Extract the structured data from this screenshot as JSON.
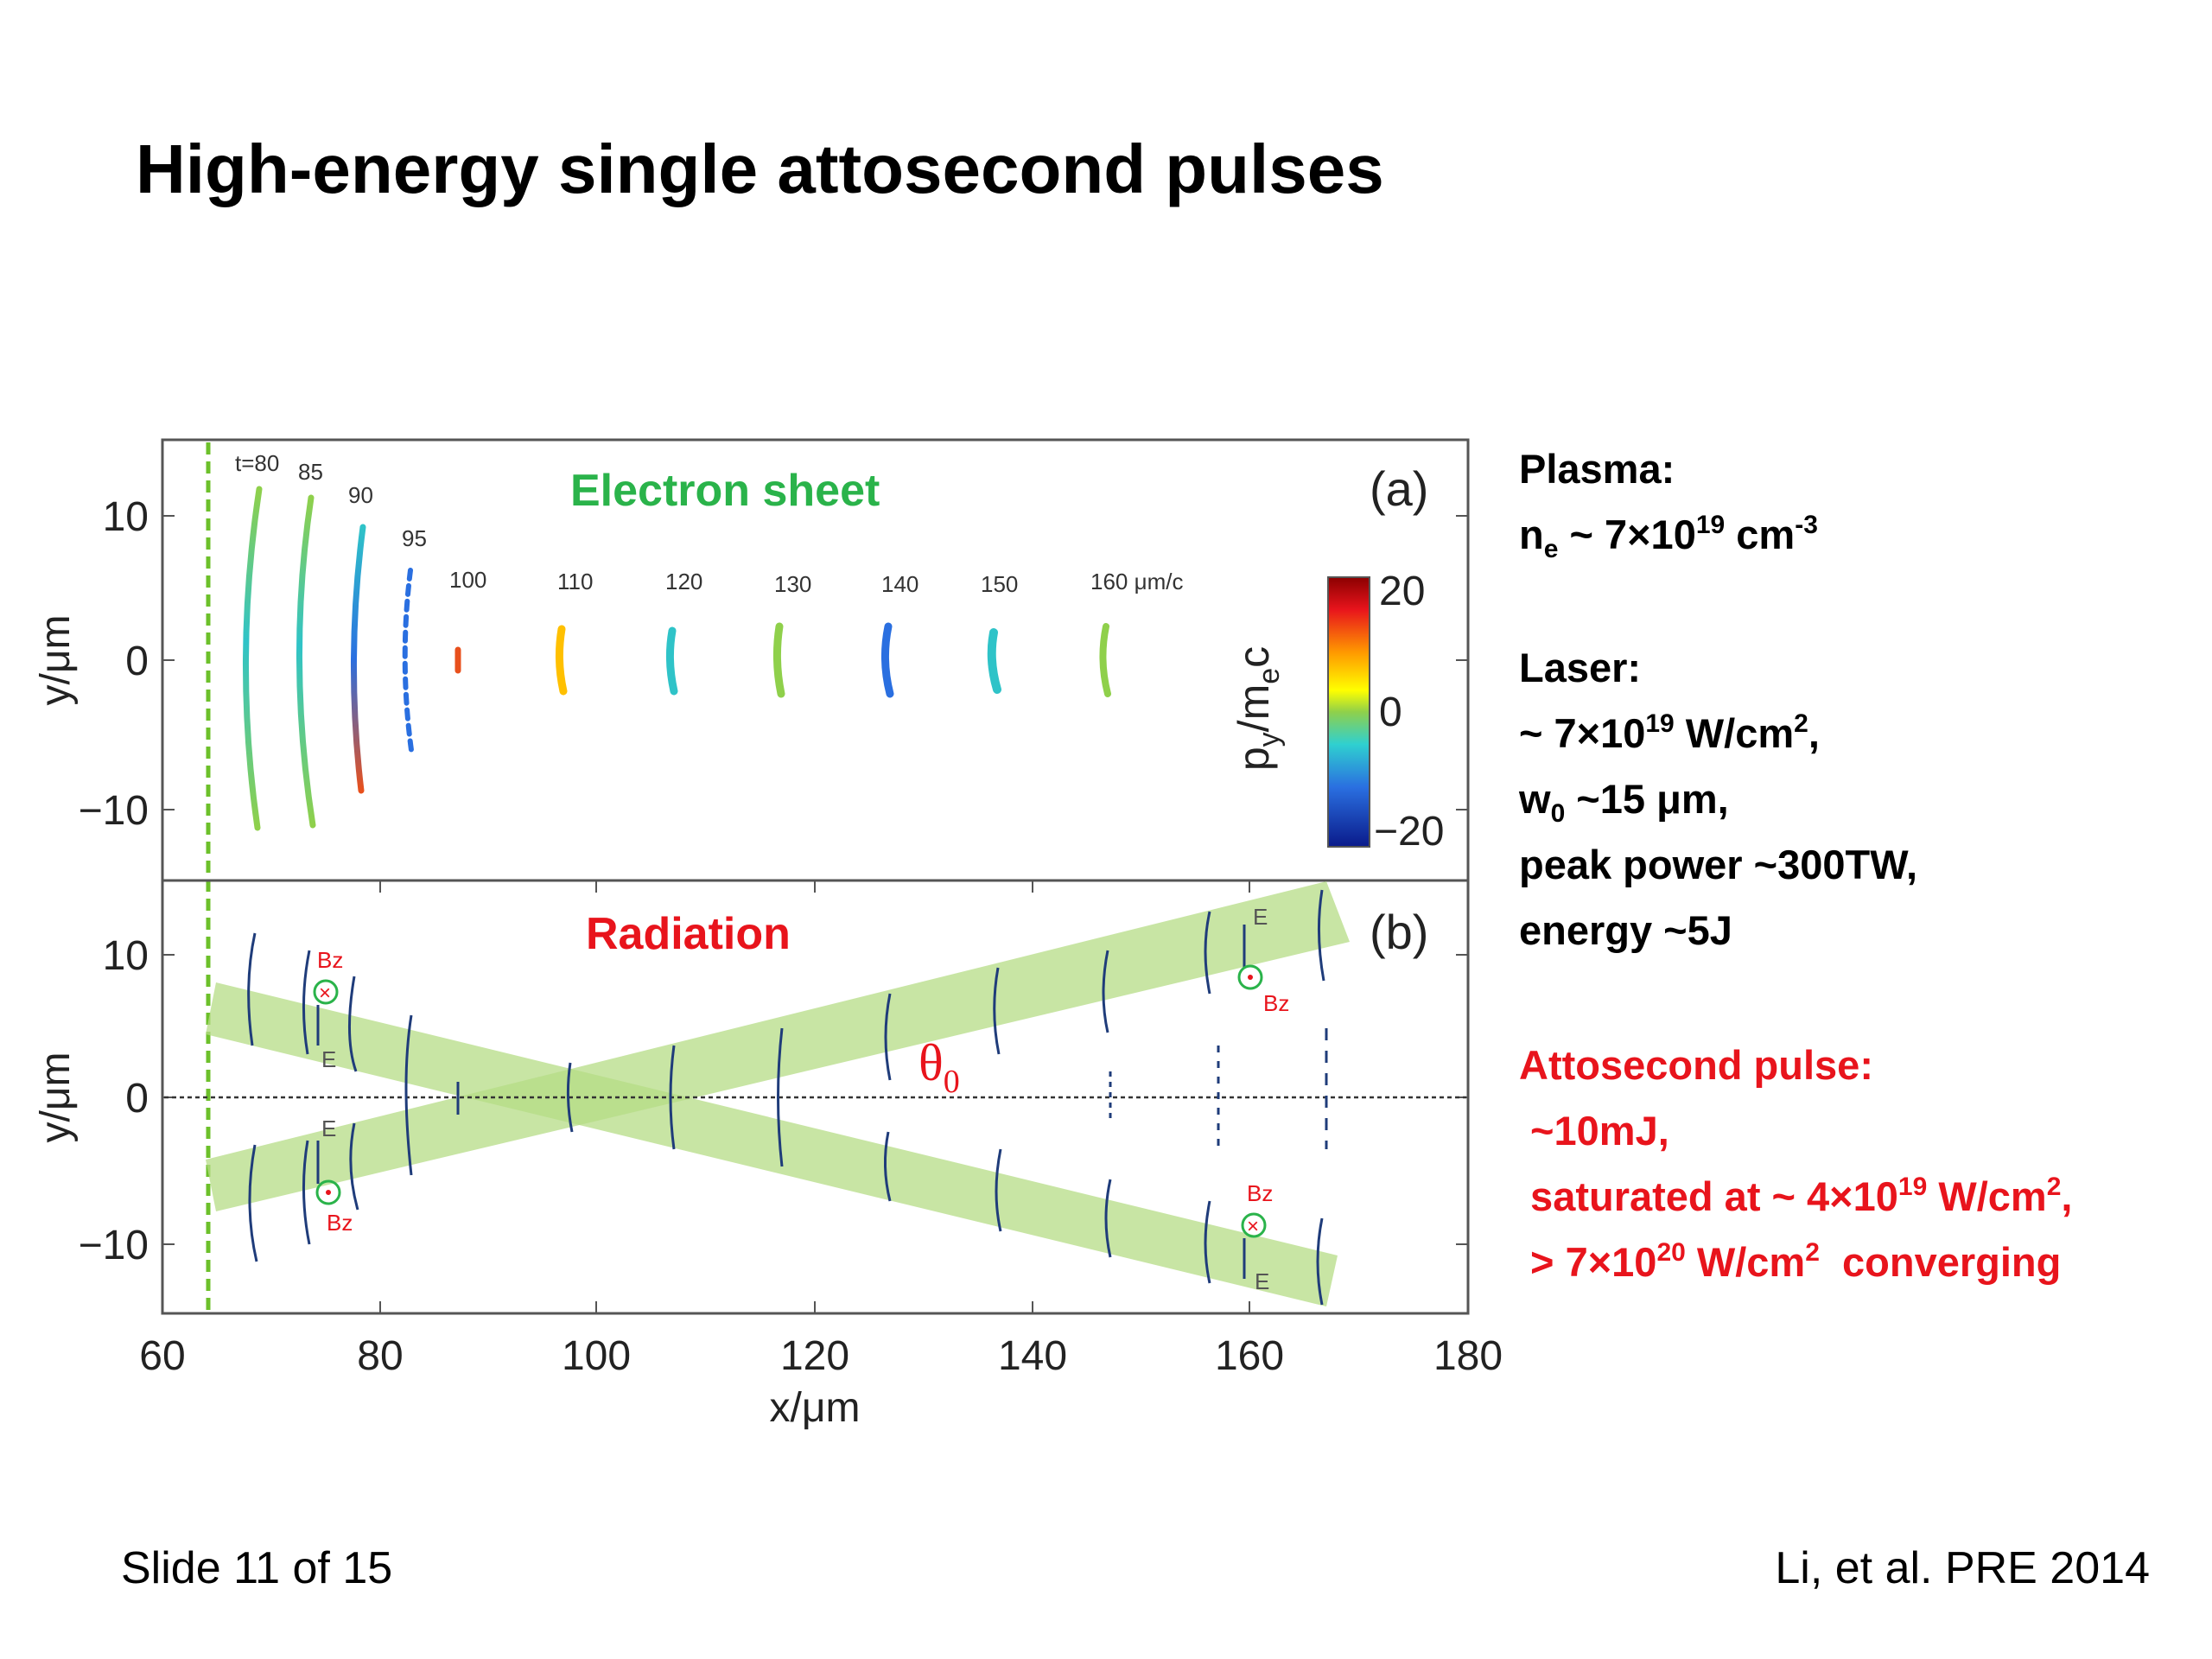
{
  "slide": {
    "title": "High-energy single attosecond pulses",
    "footer_left": "Slide 11 of 15",
    "footer_right": "Li, et al. PRE 2014"
  },
  "figure": {
    "panel_a": {
      "label": "Electron sheet",
      "panel_tag": "(a)",
      "ylabel": "y/μm",
      "time_labels": [
        "t=80",
        "85",
        "90",
        "95",
        "100",
        "110",
        "120",
        "130",
        "140",
        "150",
        "160 μm/c"
      ],
      "colorbar_label": "p",
      "colorbar_sub": "y",
      "colorbar_label2": "/m",
      "colorbar_sub2": "e",
      "colorbar_label3": "c",
      "colorbar_ticks": [
        "20",
        "0",
        "−20"
      ]
    },
    "panel_b": {
      "label": "Radiation",
      "panel_tag": "(b)",
      "ylabel": "y/μm",
      "angle": "θ",
      "angle_sub": "0",
      "field_b": "Bz",
      "field_e": "E"
    },
    "xlabel": "x/μm",
    "x_ticks": [
      "60",
      "80",
      "100",
      "120",
      "140",
      "160",
      "180"
    ],
    "y_ticks": [
      "10",
      "0",
      "−10"
    ]
  },
  "side_text": {
    "plasma_heading": "Plasma:",
    "plasma_ne": "n",
    "plasma_ne_sub": "e",
    "plasma_ne_val": " ~ 7×10",
    "plasma_ne_exp": "19",
    "plasma_ne_unit": " cm",
    "plasma_ne_unit_exp": "-3",
    "laser_heading": "Laser:",
    "laser_int_a": "~ 7×10",
    "laser_int_exp": "19",
    "laser_int_b": " W/cm",
    "laser_int_exp2": "2",
    "laser_int_c": ",",
    "laser_w": "w",
    "laser_w_sub": "0",
    "laser_w_val": " ~15 μm,",
    "laser_power": "peak power ~300TW,",
    "laser_energy": "energy ~5J",
    "atto_heading": "Attosecond pulse:",
    "atto_energy": " ~10mJ,",
    "atto_sat_a": " saturated at ~ 4×10",
    "atto_sat_exp": "19",
    "atto_sat_b": " W/cm",
    "atto_sat_exp2": "2",
    "atto_sat_c": ",",
    "atto_conv_a": " > 7×10",
    "atto_conv_exp": "20",
    "atto_conv_b": " W/cm",
    "atto_conv_exp2": "2",
    "atto_conv_c": "  converging"
  }
}
